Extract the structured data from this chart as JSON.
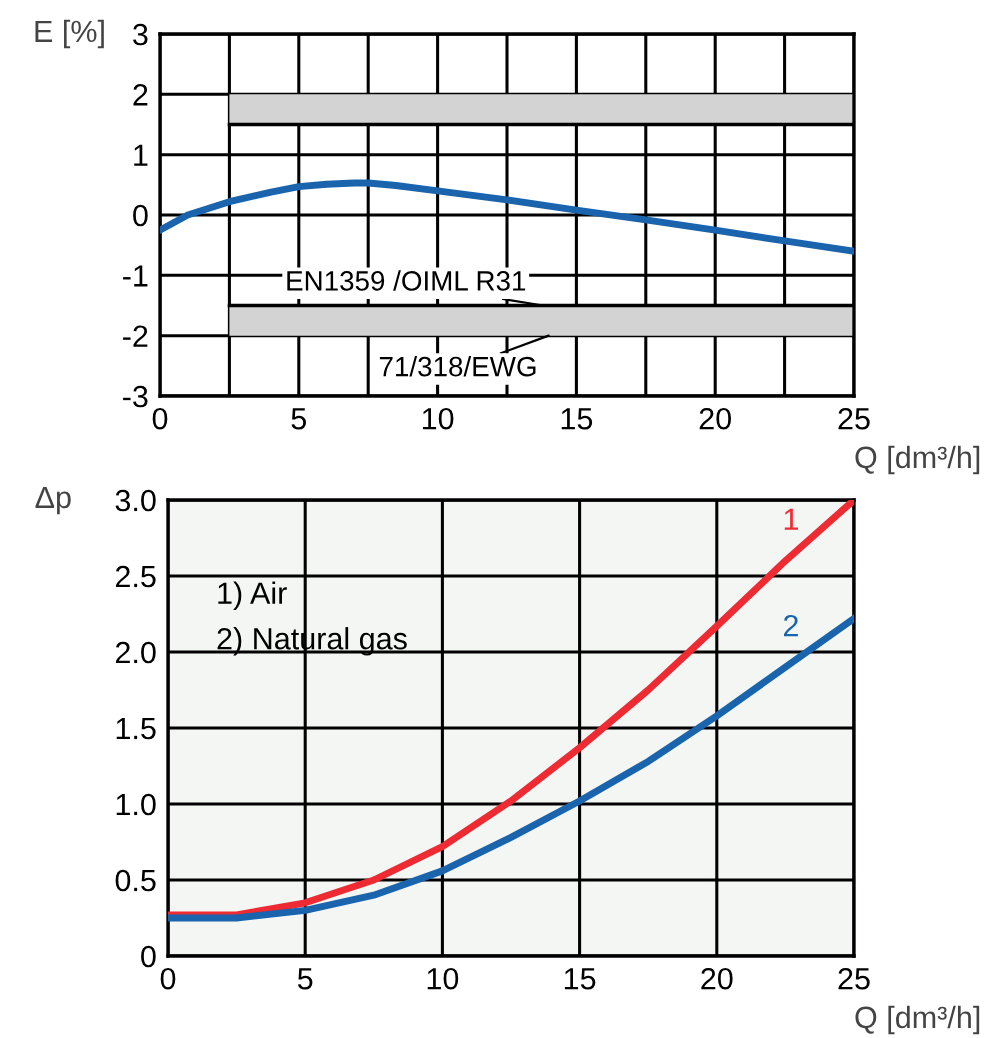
{
  "chart_data": [
    {
      "type": "line",
      "xlabel": "Q [dm³/h]",
      "ylabel": "E [%]",
      "xlim": [
        0,
        25
      ],
      "ylim": [
        -3,
        3
      ],
      "xticks": [
        0,
        {
          "value": 2.5,
          "label": null
        },
        5,
        {
          "value": 7.5,
          "label": null
        },
        10,
        {
          "value": 12.5,
          "label": null
        },
        15,
        {
          "value": 17.5,
          "label": null
        },
        20,
        {
          "value": 22.5,
          "label": null
        },
        25
      ],
      "yticks": [
        -3,
        -2,
        -1,
        0,
        1,
        2,
        3
      ],
      "grid": true,
      "line_style": "solid",
      "series": [
        {
          "color": "#000000",
          "x": [
            2.5,
            25
          ],
          "values": [
            1.5,
            1.5
          ],
          "lower": [
            1.5,
            1.5
          ],
          "upper": [
            2,
            2
          ]
        },
        {
          "color": "#000000",
          "x": [
            2.5,
            25
          ],
          "values": [
            -1.5,
            -1.5
          ],
          "lower": [
            -2,
            -2
          ],
          "upper": [
            -1.5,
            -1.5
          ]
        },
        {
          "color": "#1a63ad",
          "x": [
            0,
            1,
            2.5,
            4,
            5,
            6,
            7,
            7.5,
            8.5,
            10,
            12.5,
            15,
            17.5,
            20,
            22.5,
            25
          ],
          "values": [
            -0.25,
            0.0,
            0.22,
            0.38,
            0.47,
            0.51,
            0.53,
            0.53,
            0.49,
            0.4,
            0.25,
            0.08,
            -0.08,
            -0.25,
            -0.43,
            -0.6
          ]
        }
      ],
      "annotations": [
        {
          "text": "EN1359 /OIML R31",
          "x": 13.8,
          "y": -1.5
        },
        {
          "text": "71/318/EWG",
          "x": 14,
          "y": -2
        }
      ]
    },
    {
      "type": "line",
      "xlabel": "Q [dm³/h]",
      "ylabel": "Δp",
      "xlim": [
        0,
        25
      ],
      "ylim": [
        0,
        3
      ],
      "xticks": [
        0,
        5,
        10,
        15,
        20,
        25
      ],
      "yticks": [
        0,
        {
          "value": 0.5,
          "label": "0.5"
        },
        {
          "value": 1,
          "label": "1.0"
        },
        {
          "value": 1.5,
          "label": "1.5"
        },
        {
          "value": 2,
          "label": "2.0"
        },
        {
          "value": 2.5,
          "label": "2.5"
        },
        {
          "value": 3,
          "label": "3.0"
        }
      ],
      "grid": true,
      "line_style": "solid",
      "series": [
        {
          "name": "1",
          "color": "#ee2a33",
          "x": [
            0,
            2.5,
            5,
            7.5,
            10,
            12.5,
            15,
            17.5,
            20,
            22.5,
            25
          ],
          "values": [
            0.27,
            0.27,
            0.35,
            0.5,
            0.72,
            1.02,
            1.37,
            1.75,
            2.17,
            2.6,
            3.0
          ]
        },
        {
          "name": "2",
          "color": "#1a63ad",
          "x": [
            0,
            2.5,
            5,
            7.5,
            10,
            12.5,
            15,
            17.5,
            20,
            22.5,
            25
          ],
          "values": [
            0.25,
            0.25,
            0.3,
            0.4,
            0.56,
            0.78,
            1.02,
            1.28,
            1.58,
            1.9,
            2.22
          ]
        }
      ],
      "annotations": [
        "1) Air",
        "2) Natural gas"
      ]
    }
  ]
}
